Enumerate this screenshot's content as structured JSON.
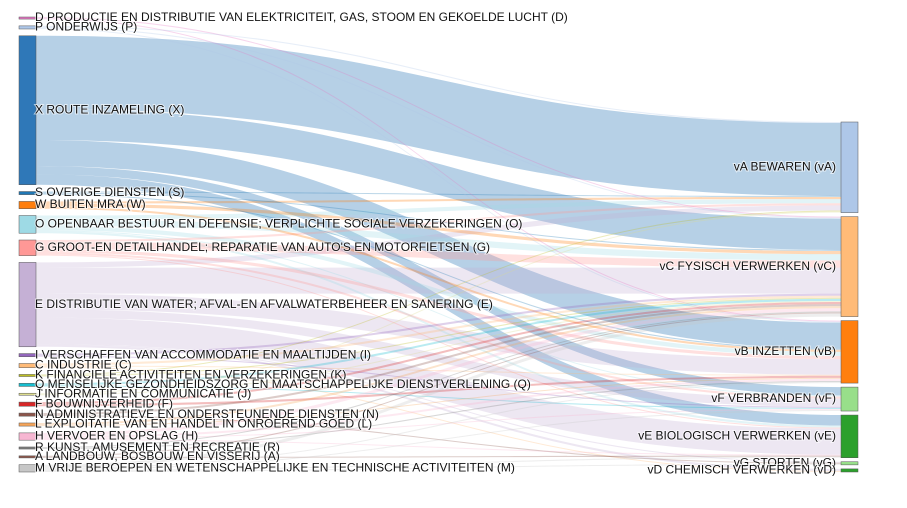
{
  "chart_data": {
    "type": "sankey",
    "nodes": [
      {
        "label": "D PRODUCTIE EN DISTRIBUTIE VAN ELEKTRICITEIT, GAS, STOOM EN GEKOELDE LUCHT (D)",
        "color": "#e377c2",
        "column": 0
      },
      {
        "label": "P ONDERWIJS (P)",
        "color": "#aec7e8",
        "column": 0
      },
      {
        "label": "X ROUTE INZAMELING (X)",
        "color": "#2f78b8",
        "column": 0
      },
      {
        "label": "S OVERIGE DIENSTEN (S)",
        "color": "#1f77b4",
        "column": 0
      },
      {
        "label": "W BUITEN MRA (W)",
        "color": "#ff7f0e",
        "column": 0
      },
      {
        "label": "O OPENBAAR BESTUUR EN DEFENSIE; VERPLICHTE SOCIALE VERZEKERINGEN (O)",
        "color": "#9edae5",
        "column": 0
      },
      {
        "label": "G GROOT-EN DETAILHANDEL; REPARATIE VAN AUTO'S EN MOTORFIETSEN (G)",
        "color": "#ff9896",
        "column": 0
      },
      {
        "label": "E DISTRIBUTIE VAN WATER; AFVAL-EN AFVALWATERBEHEER EN SANERING (E)",
        "color": "#c5b0d5",
        "column": 0
      },
      {
        "label": "I VERSCHAFFEN VAN ACCOMMODATIE EN MAALTIJDEN (I)",
        "color": "#9467bd",
        "column": 0
      },
      {
        "label": "C INDUSTRIE (C)",
        "color": "#ffbb78",
        "column": 0
      },
      {
        "label": "K FINANCIELE ACTIVITEITEN EN VERZEKERINGEN (K)",
        "color": "#bcbd22",
        "column": 0
      },
      {
        "label": "Q MENSELIJKE GEZONDHEIDSZORG EN MAATSCHAPPELIJKE DIENSTVERLENING (Q)",
        "color": "#17becf",
        "column": 0
      },
      {
        "label": "J INFORMATIE EN COMMUNICATIE (J)",
        "color": "#dbdb8d",
        "column": 0
      },
      {
        "label": "F BOUWNIJVERHEID (F)",
        "color": "#d62728",
        "column": 0
      },
      {
        "label": "N ADMINISTRATIEVE EN ONDERSTEUNENDE DIENSTEN (N)",
        "color": "#8c564b",
        "column": 0
      },
      {
        "label": "L EXPLOITATIE VAN EN HANDEL IN ONROEREND GOED (L)",
        "color": "#f5a55a",
        "column": 0
      },
      {
        "label": "H VERVOER EN OPSLAG (H)",
        "color": "#f7b6d2",
        "column": 0
      },
      {
        "label": "R KUNST, AMUSEMENT EN RECREATIE (R)",
        "color": "#7f7f7f",
        "column": 0
      },
      {
        "label": "A LANDBOUW, BOSBOUW EN VISSERIJ (A)",
        "color": "#8c564b",
        "column": 0
      },
      {
        "label": "M VRIJE BEROEPEN EN WETENSCHAPPELIJKE EN TECHNISCHE ACTIVITEITEN (M)",
        "color": "#c7c7c7",
        "column": 0
      },
      {
        "label": "vA BEWAREN (vA)",
        "color": "#aec7e8",
        "column": 1
      },
      {
        "label": "vC FYSISCH VERWERKEN (vC)",
        "color": "#ffbb78",
        "column": 1
      },
      {
        "label": "vB INZETTEN (vB)",
        "color": "#ff7f0e",
        "column": 1
      },
      {
        "label": "vF VERBRANDEN (vF)",
        "color": "#98df8a",
        "column": 1
      },
      {
        "label": "vE BIOLOGISCH VERWERKEN (vE)",
        "color": "#2ca02c",
        "column": 1
      },
      {
        "label": "vG STORTEN (vG)",
        "color": "#98df8a",
        "column": 1
      },
      {
        "label": "vD CHEMISCH VERWERKEN (vD)",
        "color": "#2ca02c",
        "column": 1
      }
    ],
    "links": [
      {
        "source": 2,
        "target": 20,
        "value": 70
      },
      {
        "source": 2,
        "target": 21,
        "value": 30
      },
      {
        "source": 2,
        "target": 22,
        "value": 25
      },
      {
        "source": 2,
        "target": 23,
        "value": 8
      },
      {
        "source": 2,
        "target": 24,
        "value": 10
      },
      {
        "source": 7,
        "target": 20,
        "value": 5
      },
      {
        "source": 7,
        "target": 21,
        "value": 25
      },
      {
        "source": 7,
        "target": 22,
        "value": 15
      },
      {
        "source": 7,
        "target": 23,
        "value": 8
      },
      {
        "source": 7,
        "target": 24,
        "value": 25
      },
      {
        "source": 7,
        "target": 25,
        "value": 1
      },
      {
        "source": 7,
        "target": 26,
        "value": 2
      },
      {
        "source": 5,
        "target": 20,
        "value": 4
      },
      {
        "source": 5,
        "target": 21,
        "value": 6
      },
      {
        "source": 5,
        "target": 22,
        "value": 4
      },
      {
        "source": 5,
        "target": 23,
        "value": 1
      },
      {
        "source": 5,
        "target": 24,
        "value": 2
      },
      {
        "source": 6,
        "target": 20,
        "value": 2
      },
      {
        "source": 6,
        "target": 21,
        "value": 7
      },
      {
        "source": 6,
        "target": 22,
        "value": 3
      },
      {
        "source": 6,
        "target": 23,
        "value": 2
      },
      {
        "source": 6,
        "target": 24,
        "value": 1
      },
      {
        "source": 4,
        "target": 20,
        "value": 2
      },
      {
        "source": 4,
        "target": 21,
        "value": 3
      },
      {
        "source": 4,
        "target": 22,
        "value": 2
      },
      {
        "source": 3,
        "target": 20,
        "value": 1
      },
      {
        "source": 3,
        "target": 21,
        "value": 1
      },
      {
        "source": 3,
        "target": 22,
        "value": 1
      },
      {
        "source": 0,
        "target": 21,
        "value": 1
      },
      {
        "source": 0,
        "target": 22,
        "value": 1
      },
      {
        "source": 1,
        "target": 20,
        "value": 1
      },
      {
        "source": 1,
        "target": 21,
        "value": 1
      },
      {
        "source": 1,
        "target": 22,
        "value": 1
      },
      {
        "source": 8,
        "target": 21,
        "value": 2
      },
      {
        "source": 8,
        "target": 23,
        "value": 1
      },
      {
        "source": 9,
        "target": 21,
        "value": 2
      },
      {
        "source": 9,
        "target": 22,
        "value": 1
      },
      {
        "source": 9,
        "target": 26,
        "value": 1
      },
      {
        "source": 10,
        "target": 20,
        "value": 1
      },
      {
        "source": 10,
        "target": 21,
        "value": 1
      },
      {
        "source": 11,
        "target": 21,
        "value": 2
      },
      {
        "source": 11,
        "target": 23,
        "value": 1
      },
      {
        "source": 12,
        "target": 20,
        "value": 1
      },
      {
        "source": 12,
        "target": 21,
        "value": 1
      },
      {
        "source": 13,
        "target": 21,
        "value": 2
      },
      {
        "source": 13,
        "target": 22,
        "value": 2
      },
      {
        "source": 14,
        "target": 21,
        "value": 2
      },
      {
        "source": 14,
        "target": 25,
        "value": 1
      },
      {
        "source": 15,
        "target": 21,
        "value": 2
      },
      {
        "source": 15,
        "target": 22,
        "value": 1
      },
      {
        "source": 16,
        "target": 21,
        "value": 3
      },
      {
        "source": 16,
        "target": 22,
        "value": 2
      },
      {
        "source": 16,
        "target": 23,
        "value": 1
      },
      {
        "source": 16,
        "target": 24,
        "value": 1
      },
      {
        "source": 17,
        "target": 21,
        "value": 1
      },
      {
        "source": 17,
        "target": 22,
        "value": 1
      },
      {
        "source": 18,
        "target": 21,
        "value": 1
      },
      {
        "source": 18,
        "target": 24,
        "value": 1
      },
      {
        "source": 19,
        "target": 21,
        "value": 3
      },
      {
        "source": 19,
        "target": 22,
        "value": 1
      },
      {
        "source": 19,
        "target": 23,
        "value": 1
      },
      {
        "source": 19,
        "target": 25,
        "value": 1
      },
      {
        "source": 19,
        "target": 24,
        "value": 1
      }
    ]
  }
}
